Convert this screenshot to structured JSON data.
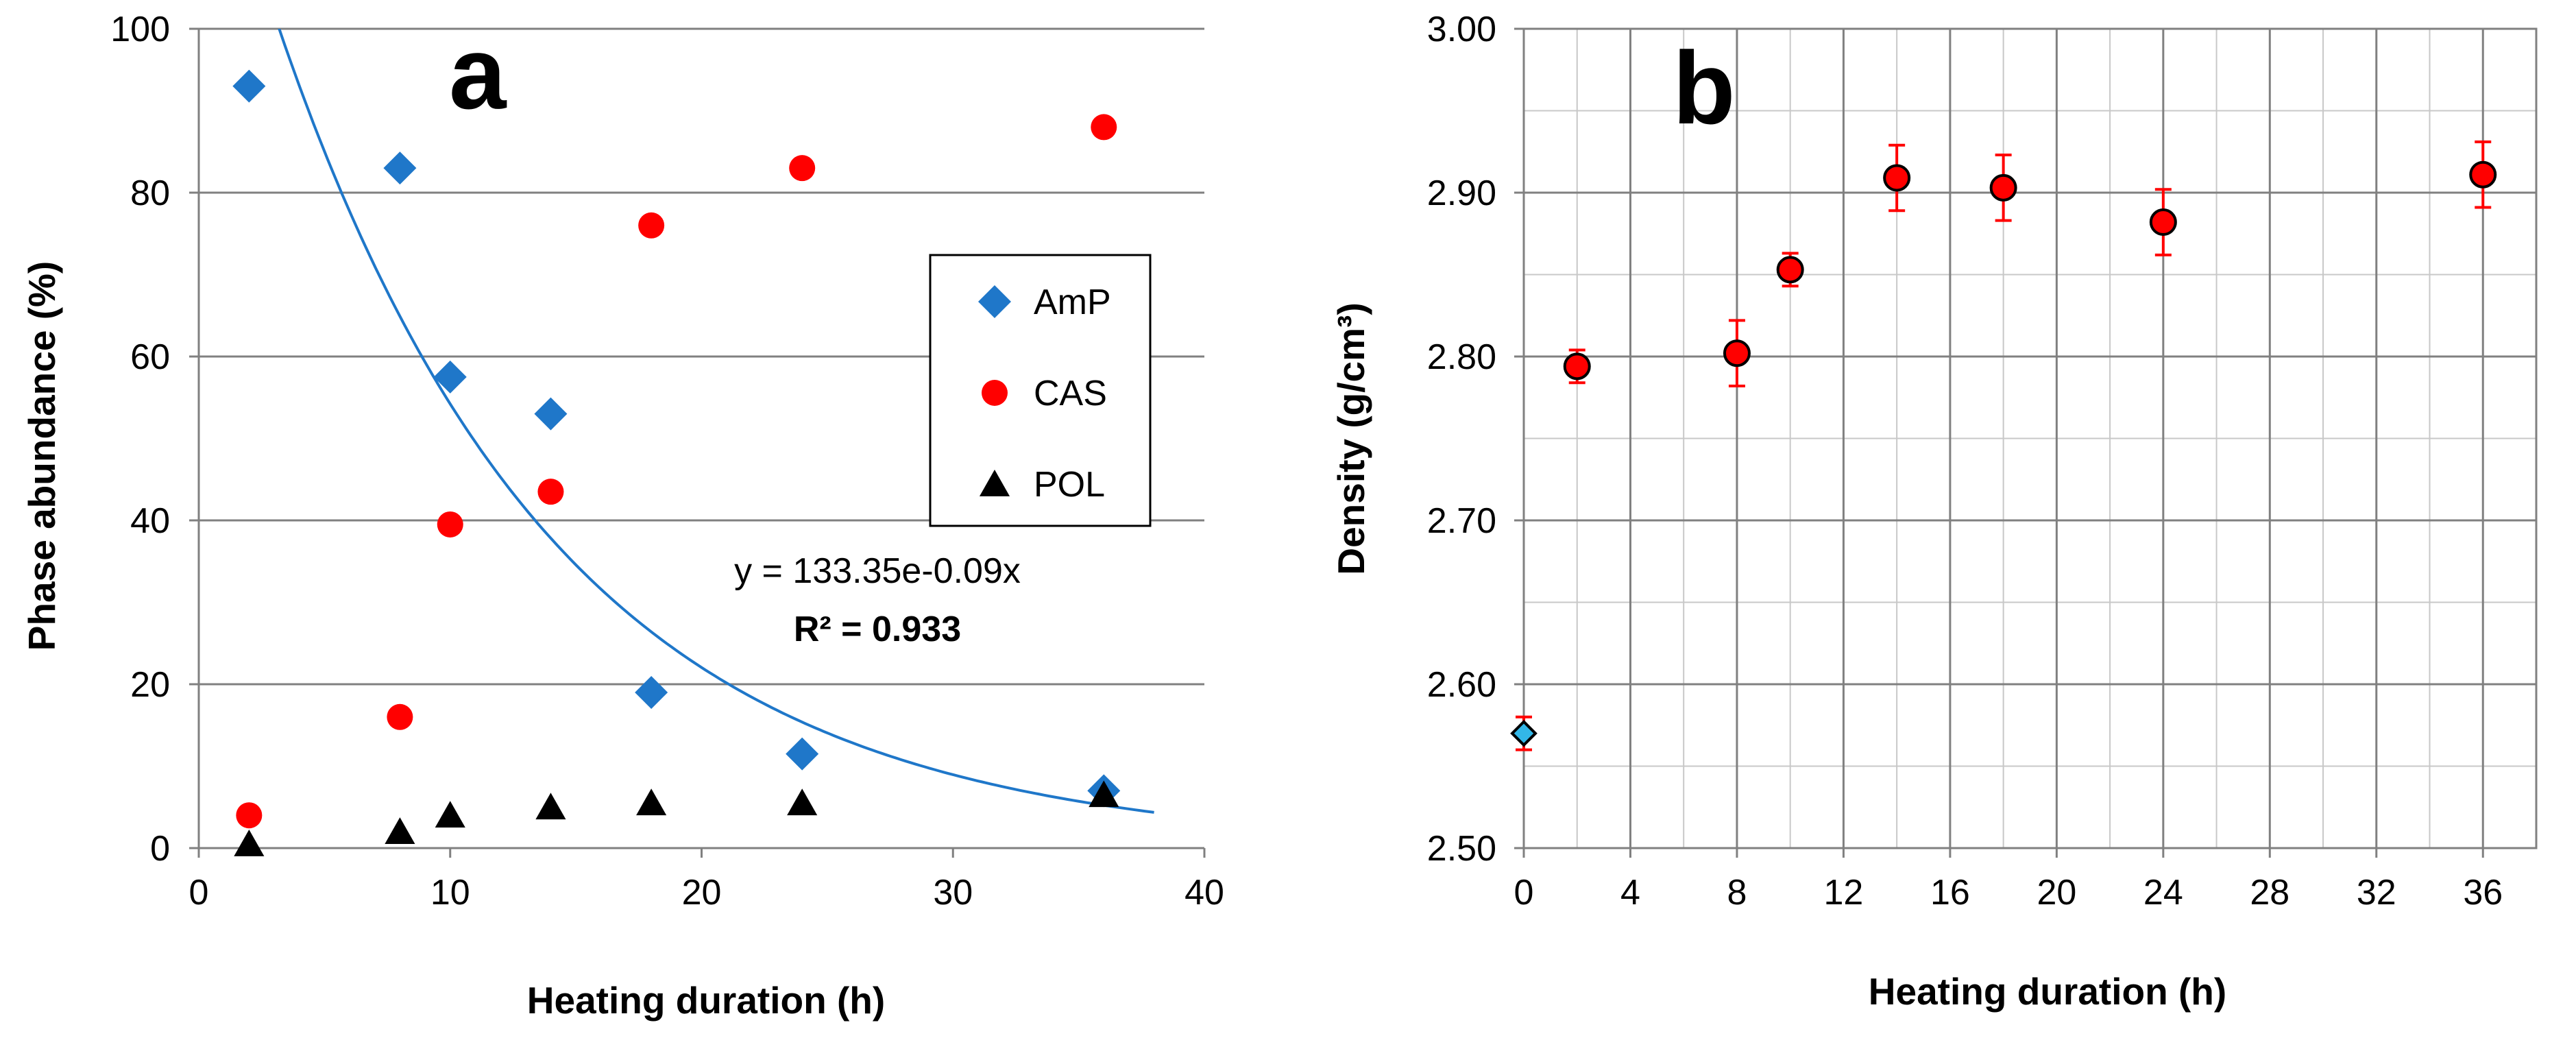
{
  "colors": {
    "amp": "#1f77c9",
    "cas": "#ff0000",
    "pol": "#000000",
    "fit": "#1f77c9",
    "grid": "#808080",
    "errbar": "#ff0000"
  },
  "chart_data": [
    {
      "type": "scatter",
      "panel_label": "a",
      "xlabel": "Heating duration  (h)",
      "ylabel": "Phase abundance (%)",
      "xlim": [
        0,
        40
      ],
      "ylim": [
        0,
        100
      ],
      "xticks": [
        "0",
        "10",
        "20",
        "30",
        "40"
      ],
      "yticks": [
        "0",
        "20",
        "40",
        "60",
        "80",
        "100"
      ],
      "grid": "horizontal",
      "legend_position": "right",
      "series": [
        {
          "name": "AmP",
          "marker": "diamond",
          "color": "#1f77c9",
          "points": [
            [
              2,
              93
            ],
            [
              8,
              83
            ],
            [
              10,
              57.5
            ],
            [
              14,
              53
            ],
            [
              18,
              19
            ],
            [
              24,
              11.5
            ],
            [
              36,
              7
            ]
          ]
        },
        {
          "name": "CAS",
          "marker": "circle",
          "color": "#ff0000",
          "points": [
            [
              2,
              4
            ],
            [
              8,
              16
            ],
            [
              10,
              39.5
            ],
            [
              14,
              43.5
            ],
            [
              18,
              76
            ],
            [
              24,
              83
            ],
            [
              36,
              88
            ]
          ]
        },
        {
          "name": "POL",
          "marker": "triangle",
          "color": "#000000",
          "points": [
            [
              2,
              0.5
            ],
            [
              8,
              2
            ],
            [
              10,
              4
            ],
            [
              14,
              5
            ],
            [
              18,
              5.5
            ],
            [
              24,
              5.5
            ],
            [
              36,
              6.5
            ]
          ]
        }
      ],
      "trendline": {
        "of_series": "AmP",
        "model": "exponential",
        "a": 133.35,
        "b": -0.09,
        "x_range": [
          0,
          38
        ],
        "equation": "y = 133.35e-0.09x",
        "r2_prefix": "R² = ",
        "r2_value": "0.933"
      }
    },
    {
      "type": "scatter",
      "panel_label": "b",
      "xlabel": "Heating duration  (h)",
      "ylabel": "Density (g/cm³)",
      "xlim": [
        0,
        38
      ],
      "ylim": [
        2.5,
        3.0
      ],
      "xticks": [
        "0",
        "4",
        "8",
        "12",
        "16",
        "20",
        "24",
        "28",
        "32",
        "36"
      ],
      "yticks": [
        "2.50",
        "2.60",
        "2.70",
        "2.80",
        "2.90",
        "3.00"
      ],
      "grid": "both",
      "series": [
        {
          "marker": "diamond",
          "color": "#33b7e8",
          "points": [
            [
              0,
              2.57,
              0.01
            ]
          ]
        },
        {
          "marker": "circle",
          "color": "#ff0000",
          "points": [
            [
              2,
              2.794,
              0.01
            ],
            [
              8,
              2.802,
              0.02
            ],
            [
              10,
              2.853,
              0.01
            ],
            [
              14,
              2.909,
              0.02
            ],
            [
              18,
              2.903,
              0.02
            ],
            [
              24,
              2.882,
              0.02
            ],
            [
              36,
              2.911,
              0.02
            ]
          ]
        }
      ]
    }
  ]
}
